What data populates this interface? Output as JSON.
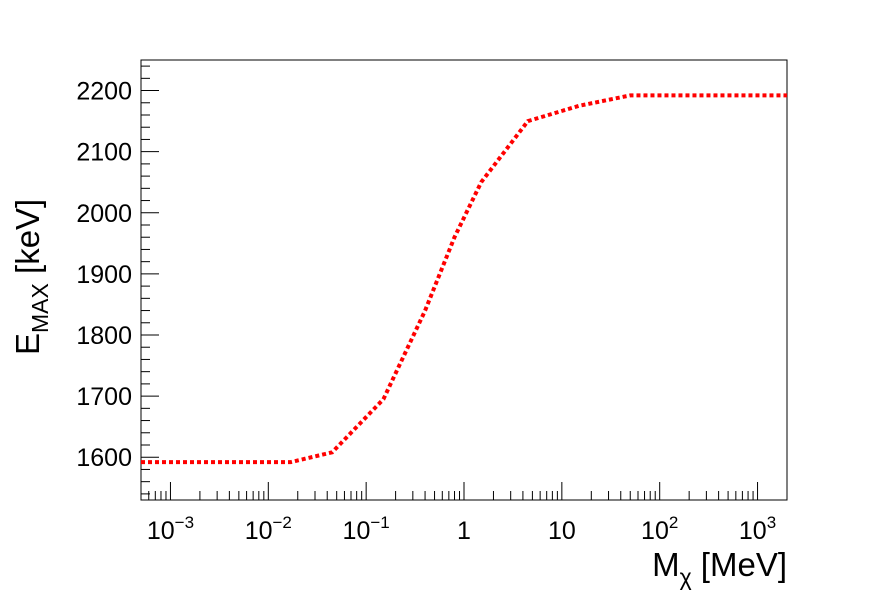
{
  "chart_data": {
    "type": "line",
    "title": "",
    "xlabel": {
      "main": "M",
      "sub": "χ",
      "unit": " [MeV]"
    },
    "ylabel": {
      "main": "E",
      "sub": "MAX",
      "unit": " [keV]"
    },
    "xscale": "log",
    "xlim": [
      0.0005,
      2000
    ],
    "ylim": [
      1530,
      2250
    ],
    "grid": false,
    "legend": "none",
    "x_tick_labels": [
      {
        "value": 0.001,
        "base": "10",
        "exp": "−3"
      },
      {
        "value": 0.01,
        "base": "10",
        "exp": "−2"
      },
      {
        "value": 0.1,
        "base": "10",
        "exp": "−1"
      },
      {
        "value": 1,
        "base": "1",
        "exp": ""
      },
      {
        "value": 10,
        "base": "10",
        "exp": ""
      },
      {
        "value": 100,
        "base": "10",
        "exp": "2"
      },
      {
        "value": 1000,
        "base": "10",
        "exp": "3"
      }
    ],
    "y_ticks": [
      1600,
      1700,
      1800,
      1900,
      2000,
      2100,
      2200
    ],
    "y_tick_labels": [
      "1600",
      "1700",
      "1800",
      "1900",
      "2000",
      "2100",
      "2200"
    ],
    "series": [
      {
        "color": "#ff0000",
        "style": "dotted",
        "x": [
          0.0005,
          0.001,
          0.005,
          0.017,
          0.045,
          0.15,
          0.4,
          0.8,
          1.5,
          4.5,
          15,
          50,
          200,
          2000
        ],
        "y": [
          1592,
          1592,
          1592,
          1592,
          1608,
          1695,
          1840,
          1960,
          2050,
          2150,
          2175,
          2192,
          2192,
          2192
        ]
      }
    ]
  }
}
